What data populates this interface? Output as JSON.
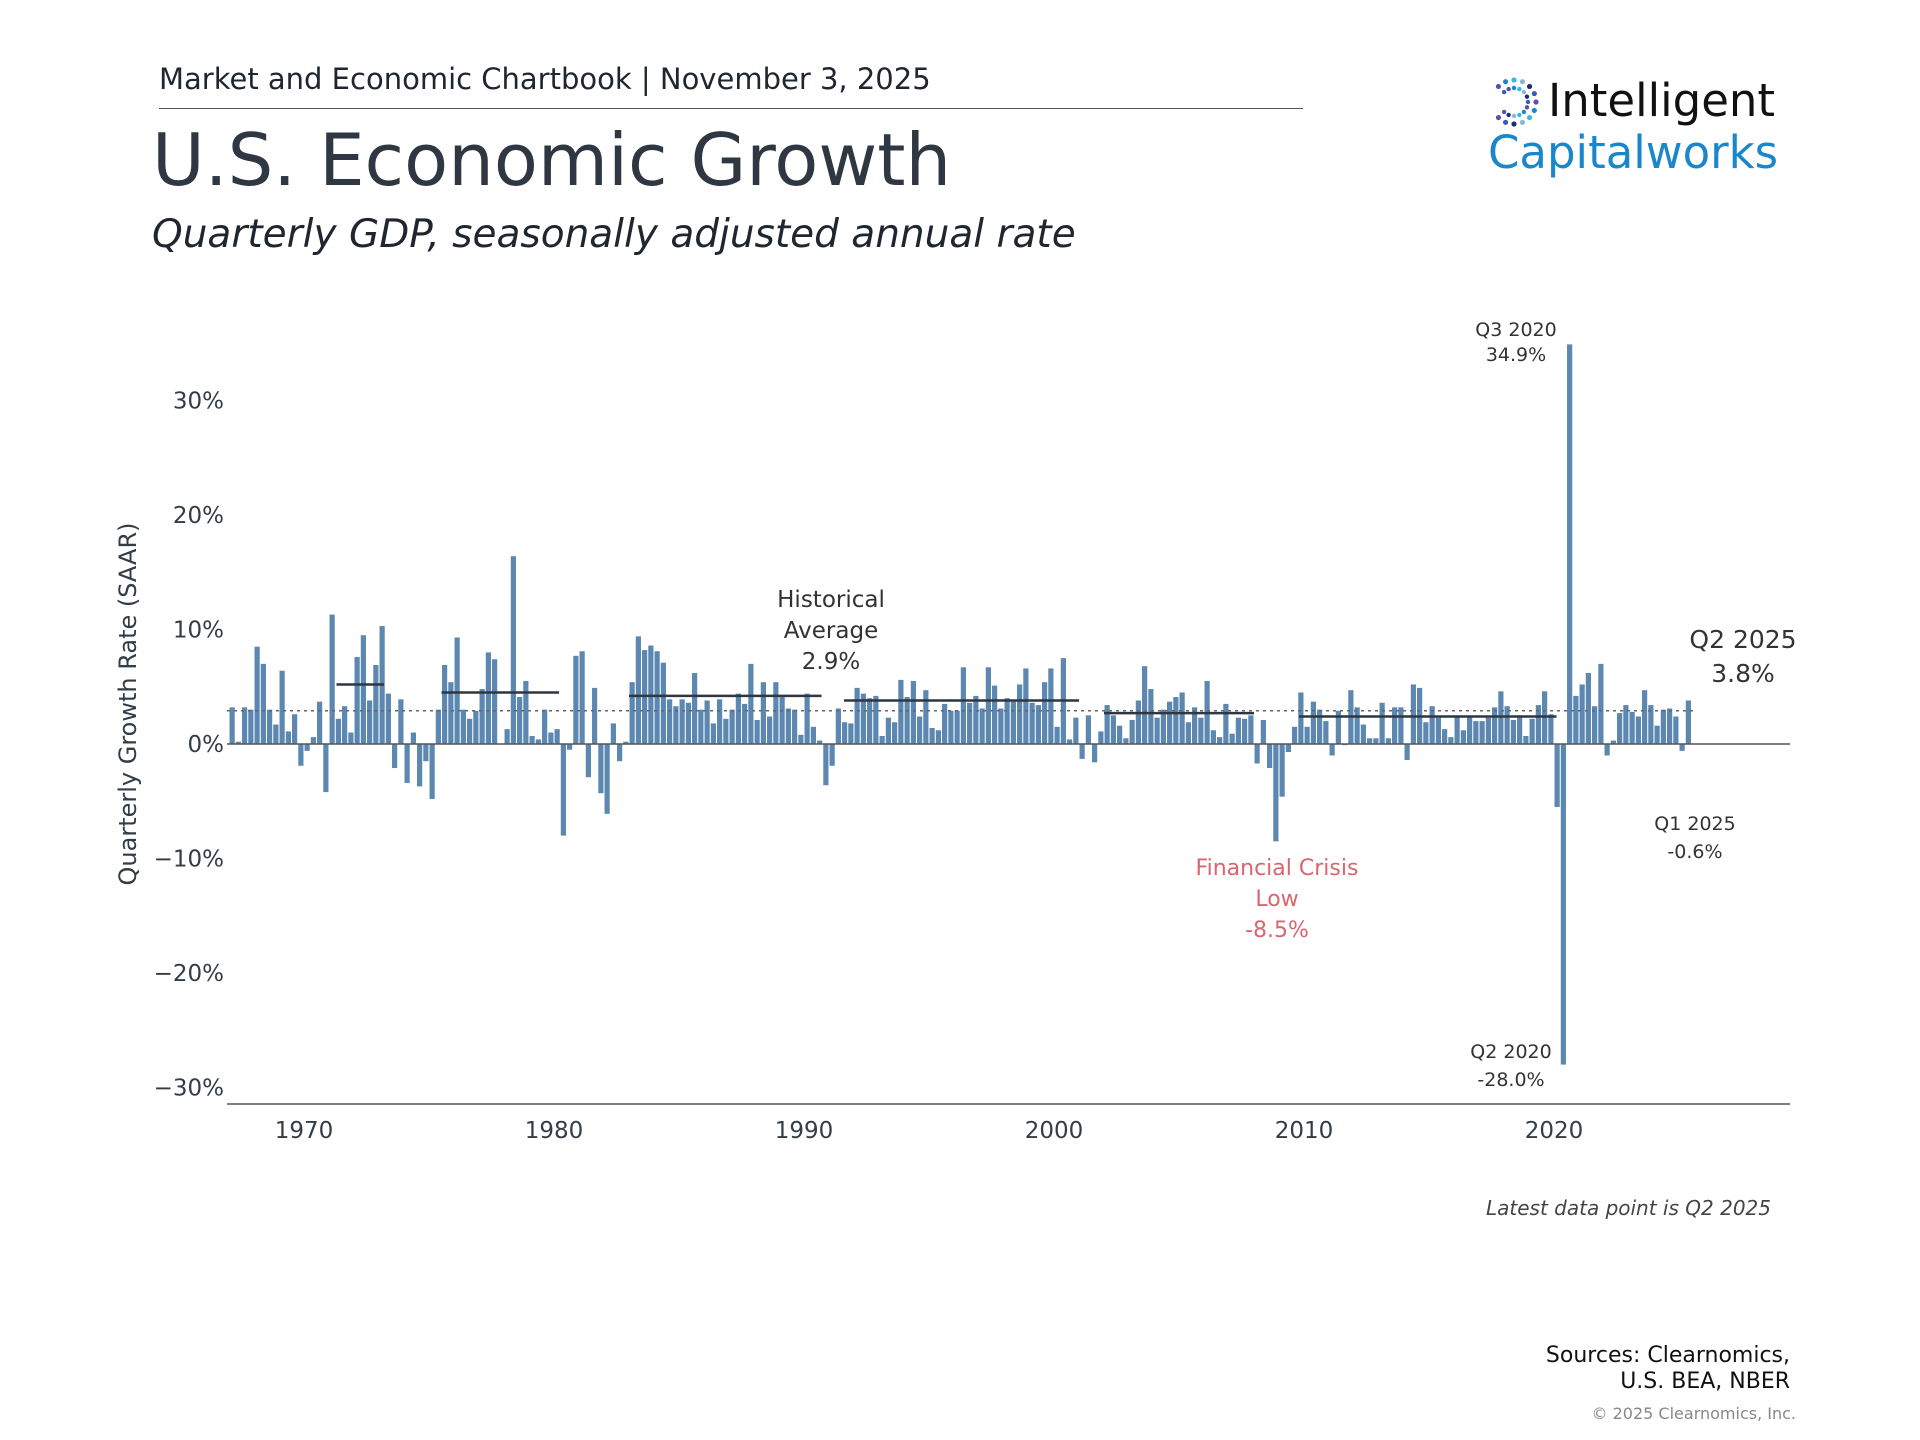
{
  "header": {
    "chartbook": "Market and Economic Chartbook | November 3, 2025",
    "title": "U.S. Economic Growth",
    "subtitle": "Quarterly GDP, seasonally adjusted annual rate"
  },
  "logo": {
    "line1": "Intelligent",
    "line2": "Capitalworks",
    "accent_color": "#1a86cc"
  },
  "chart_data": {
    "type": "bar",
    "title": "U.S. Economic Growth",
    "subtitle": "Quarterly GDP, seasonally adjusted annual rate",
    "xlabel": "",
    "ylabel": "Quarterly Growth Rate (SAAR)",
    "ylim": [
      -30,
      35
    ],
    "xlim": [
      1966.9,
      2029
    ],
    "x_start": "Q1 1967",
    "x_end": "Q2 2025",
    "yticks": [
      "30%",
      "20%",
      "10%",
      "0%",
      "−10%",
      "−20%",
      "−30%"
    ],
    "ytick_values": [
      30,
      20,
      10,
      0,
      -10,
      -20,
      -30
    ],
    "xticks": [
      "1970",
      "1980",
      "1990",
      "2000",
      "2010",
      "2020"
    ],
    "grid": false,
    "bar_color": "#5b87b0",
    "historical_average": 2.9,
    "values": [
      3.2,
      0.2,
      3.2,
      3.0,
      8.5,
      7.0,
      3.0,
      1.7,
      6.4,
      1.1,
      2.6,
      -1.9,
      -0.6,
      0.6,
      3.7,
      -4.2,
      11.3,
      2.2,
      3.3,
      1.0,
      7.6,
      9.5,
      3.8,
      6.9,
      10.3,
      4.4,
      -2.1,
      3.9,
      -3.4,
      1.0,
      -3.7,
      -1.5,
      -4.8,
      3.0,
      6.9,
      5.4,
      9.3,
      3.0,
      2.2,
      2.9,
      4.8,
      8.0,
      7.4,
      0.0,
      1.3,
      16.4,
      4.1,
      5.5,
      0.7,
      0.4,
      3.0,
      1.0,
      1.3,
      -8.0,
      -0.5,
      7.7,
      8.1,
      -2.9,
      4.9,
      -4.3,
      -6.1,
      1.8,
      -1.5,
      0.2,
      5.4,
      9.4,
      8.2,
      8.6,
      8.1,
      7.1,
      3.9,
      3.3,
      3.9,
      3.6,
      6.2,
      3.0,
      3.8,
      1.8,
      3.9,
      2.2,
      3.0,
      4.4,
      3.5,
      7.0,
      2.1,
      5.4,
      2.4,
      5.4,
      4.1,
      3.1,
      3.0,
      0.8,
      4.4,
      1.5,
      0.3,
      -3.6,
      -1.9,
      3.1,
      1.9,
      1.8,
      4.9,
      4.4,
      4.0,
      4.2,
      0.7,
      2.3,
      1.9,
      5.6,
      4.1,
      5.5,
      2.4,
      4.7,
      1.4,
      1.2,
      3.5,
      2.9,
      2.9,
      6.7,
      3.6,
      4.2,
      3.1,
      6.7,
      5.1,
      3.1,
      4.0,
      3.7,
      5.2,
      6.6,
      3.6,
      3.4,
      5.4,
      6.6,
      1.5,
      7.5,
      0.4,
      2.3,
      -1.3,
      2.5,
      -1.6,
      1.1,
      3.4,
      2.5,
      1.6,
      0.5,
      2.1,
      3.8,
      6.8,
      4.8,
      2.3,
      3.0,
      3.7,
      4.1,
      4.5,
      1.9,
      3.2,
      2.3,
      5.5,
      1.2,
      0.6,
      3.5,
      0.9,
      2.3,
      2.2,
      2.5,
      -1.7,
      2.1,
      -2.1,
      -8.5,
      -4.6,
      -0.7,
      1.5,
      4.5,
      1.5,
      3.7,
      3.0,
      2.0,
      -1.0,
      2.9,
      -0.1,
      4.7,
      3.2,
      1.7,
      0.5,
      0.5,
      3.6,
      0.5,
      3.2,
      3.2,
      -1.4,
      5.2,
      4.9,
      1.9,
      3.3,
      2.3,
      1.3,
      0.6,
      2.4,
      1.2,
      2.4,
      2.0,
      2.0,
      2.3,
      3.2,
      4.6,
      3.3,
      2.1,
      2.5,
      0.7,
      2.2,
      3.4,
      4.6,
      2.6,
      -5.5,
      -28.0,
      34.9,
      4.2,
      5.2,
      6.2,
      3.3,
      7.0,
      -1.0,
      0.3,
      2.7,
      3.4,
      2.8,
      2.4,
      4.7,
      3.4,
      1.6,
      3.0,
      3.1,
      2.4,
      -0.6,
      3.8
    ],
    "expansion_averages": [
      {
        "start": 1971.3,
        "end": 1973.2,
        "value": 5.2
      },
      {
        "start": 1975.5,
        "end": 1980.2,
        "value": 4.5
      },
      {
        "start": 1983.0,
        "end": 1990.7,
        "value": 4.2
      },
      {
        "start": 1991.6,
        "end": 2001.0,
        "value": 3.8
      },
      {
        "start": 2002.0,
        "end": 2008.0,
        "value": 2.7
      },
      {
        "start": 2009.8,
        "end": 2020.1,
        "value": 2.4
      }
    ],
    "annotations": {
      "q3_2020": {
        "label": "Q3 2020",
        "value": "34.9%"
      },
      "hist_avg": {
        "line1": "Historical",
        "line2": "Average",
        "value": "2.9%"
      },
      "q2_2025": {
        "label": "Q2 2025",
        "value": "3.8%"
      },
      "q1_2025": {
        "label": "Q1 2025",
        "value": "-0.6%"
      },
      "fin_crisis": {
        "line1": "Financial Crisis",
        "line2": "Low",
        "value": "-8.5%",
        "color": "#d9666f"
      },
      "q2_2020": {
        "label": "Q2 2020",
        "value": "-28.0%"
      }
    }
  },
  "footer": {
    "note": "Latest data point is Q2 2025",
    "sources_line1": "Sources: Clearnomics,",
    "sources_line2": "U.S. BEA, NBER",
    "copyright": "© 2025 Clearnomics, Inc."
  }
}
